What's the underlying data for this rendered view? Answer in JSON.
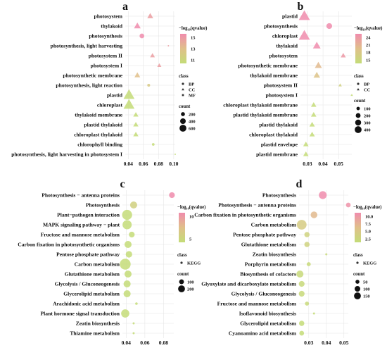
{
  "colors": {
    "high": "#f08cad",
    "mid": "#e0c08a",
    "low": "#c4dc78",
    "grid": "#e6e6e6"
  },
  "chart_data": [
    {
      "label": "a",
      "type": "scatter",
      "xlim": [
        0.036,
        0.102
      ],
      "xticks": [
        0.04,
        0.06,
        0.08,
        0.1
      ],
      "xtick_labels": [
        "0.04",
        "0.06",
        "0.08",
        "0.10"
      ],
      "categories": [
        "photosystem",
        "thylakoid",
        "photosynthesis",
        "photosynthesis, light harvesting",
        "photosystem II",
        "photosystem I",
        "photosynthetic membrane",
        "photosynthesis, light reaction",
        "plastid",
        "chloroplast",
        "thylakoid membrane",
        "plastid thylakoid",
        "chloroplast thylakoid",
        "chlorophyll binding",
        "photosynthesis, light harvesting in photosystem I"
      ],
      "x": [
        0.069,
        0.052,
        0.058,
        0.093,
        0.072,
        0.081,
        0.052,
        0.067,
        0.041,
        0.041,
        0.05,
        0.05,
        0.05,
        0.073,
        0.102
      ],
      "count": [
        180,
        230,
        160,
        10,
        120,
        90,
        170,
        60,
        620,
        620,
        140,
        140,
        140,
        50,
        5
      ],
      "neglog10q": [
        15,
        16,
        16,
        15,
        15,
        15,
        13,
        12,
        10,
        10,
        10,
        10,
        10,
        10,
        10
      ],
      "shape": [
        "triangle",
        "triangle",
        "circle",
        "circle",
        "triangle",
        "triangle",
        "triangle",
        "circle",
        "triangle",
        "triangle",
        "triangle",
        "triangle",
        "triangle",
        "circle",
        "circle"
      ],
      "color_legend": {
        "title": "−log₁₀(qvalue)",
        "ticks": [
          "15",
          "13",
          "11"
        ]
      },
      "class_legend": {
        "title": "class",
        "entries": [
          {
            "label": "BP",
            "shape": "circle"
          },
          {
            "label": "CC",
            "shape": "triangle"
          },
          {
            "label": "MF",
            "shape": "square"
          }
        ]
      },
      "size_legend": {
        "title": "count",
        "values": [
          200,
          400,
          600
        ]
      }
    },
    {
      "label": "b",
      "type": "scatter",
      "xlim": [
        0.0255,
        0.0585
      ],
      "xticks": [
        0.03,
        0.04,
        0.05
      ],
      "xtick_labels": [
        "0.03",
        "0.04",
        "0.05"
      ],
      "categories": [
        "plastid",
        "photosynthesis",
        "chloroplast",
        "thylakoid",
        "photosystem",
        "photosynthetic membrane",
        "thylakoid membrane",
        "photosystem II",
        "photosystem I",
        "chloroplast thylakoid membrane",
        "plastid thylakoid membrane",
        "plastid thylakoid",
        "chloroplast thylakoid",
        "plastid envelope",
        "plastid membrane"
      ],
      "x": [
        0.028,
        0.044,
        0.028,
        0.036,
        0.053,
        0.037,
        0.036,
        0.051,
        0.0585,
        0.034,
        0.034,
        0.033,
        0.033,
        0.029,
        0.029
      ],
      "count": [
        420,
        160,
        420,
        200,
        90,
        170,
        150,
        40,
        20,
        100,
        100,
        100,
        100,
        100,
        100
      ],
      "neglog10q": [
        24,
        24,
        24,
        24,
        23,
        20,
        19,
        17,
        15,
        15,
        15,
        15,
        15,
        15,
        15
      ],
      "shape": [
        "triangle",
        "circle",
        "triangle",
        "triangle",
        "triangle",
        "triangle",
        "triangle",
        "triangle",
        "triangle",
        "triangle",
        "triangle",
        "triangle",
        "triangle",
        "triangle",
        "triangle"
      ],
      "color_legend": {
        "title": "−log₁₀(qvalue)",
        "ticks": [
          "24",
          "21",
          "18",
          "15"
        ]
      },
      "class_legend": {
        "title": "class",
        "entries": [
          {
            "label": "BP",
            "shape": "circle"
          },
          {
            "label": "CC",
            "shape": "triangle"
          }
        ]
      },
      "size_legend": {
        "title": "count",
        "values": [
          100,
          200,
          300,
          400
        ]
      }
    },
    {
      "label": "c",
      "type": "scatter",
      "xlim": [
        0.036,
        0.091
      ],
      "xticks": [
        0.04,
        0.06,
        0.08
      ],
      "xtick_labels": [
        "0.04",
        "0.06",
        "0.08"
      ],
      "categories": [
        "Photosynthesis − antenna proteins",
        "Photosynthesis",
        "Plant−pathogen interaction",
        "MAPK signaling pathway − plant",
        "Fructose and mannose metabolism",
        "Carbon fixation in photosynthetic organisms",
        "Pentose phosphate pathway",
        "Carbon metabolism",
        "Glutathione metabolism",
        "Glycolysis / Gluconeogenesis",
        "Glycerolipid metabolism",
        "Arachidonic acid metabolism",
        "Plant hormone signal transduction",
        "Zeatin biosynthesis",
        "Thiamine metabolism"
      ],
      "x": [
        0.089,
        0.048,
        0.041,
        0.041,
        0.046,
        0.042,
        0.043,
        0.039,
        0.042,
        0.041,
        0.041,
        0.051,
        0.039,
        0.048,
        0.048
      ],
      "count": [
        80,
        120,
        240,
        200,
        80,
        120,
        100,
        280,
        120,
        120,
        120,
        15,
        160,
        10,
        10
      ],
      "neglog10q": [
        12,
        5,
        3,
        3,
        3,
        3,
        3,
        3,
        3,
        3,
        3,
        3,
        3,
        3,
        3
      ],
      "shape": [
        "circle",
        "circle",
        "circle",
        "circle",
        "circle",
        "circle",
        "circle",
        "circle",
        "circle",
        "circle",
        "circle",
        "circle",
        "circle",
        "circle",
        "circle"
      ],
      "color_legend": {
        "title": "−log₁₀(qvalue)",
        "ticks": [
          "10",
          "5"
        ]
      },
      "class_legend": {
        "title": "class",
        "entries": [
          {
            "label": "KEGG",
            "shape": "circle"
          }
        ]
      },
      "size_legend": {
        "title": "count",
        "values": [
          100,
          200
        ]
      }
    },
    {
      "label": "d",
      "type": "scatter",
      "xlim": [
        0.0245,
        0.0525
      ],
      "xticks": [
        0.03,
        0.04,
        0.05
      ],
      "xtick_labels": [
        "0.03",
        "0.04",
        "0.05"
      ],
      "categories": [
        "Photosynthesis",
        "Photosynthesis − antenna proteins",
        "Carbon fixation in photosynthetic organisms",
        "Carbon metabolism",
        "Pentose phosphate pathway",
        "Glutathione metabolism",
        "Zeatin biosynthesis",
        "Porphyrin metabolism",
        "Biosynthesis of cofactors",
        "Glyoxylate and dicarboxylate metabolism",
        "Glycolysis / Gluconeogenesis",
        "Fructose and mannose metabolism",
        "Isoflavonoid biosynthesis",
        "Glycerolipid metabolism",
        "Cyanoamino acid metabolism"
      ],
      "x": [
        0.038,
        0.0525,
        0.033,
        0.026,
        0.029,
        0.029,
        0.04,
        0.03,
        0.025,
        0.026,
        0.026,
        0.029,
        0.033,
        0.026,
        0.026
      ],
      "count": [
        110,
        40,
        80,
        170,
        50,
        50,
        8,
        30,
        90,
        60,
        60,
        30,
        8,
        50,
        40
      ],
      "neglog10q": [
        11.5,
        11,
        8,
        6,
        5,
        5,
        4,
        4,
        4,
        4,
        4,
        4,
        3.5,
        3.5,
        3.5
      ],
      "shape": [
        "circle",
        "circle",
        "circle",
        "circle",
        "circle",
        "circle",
        "circle",
        "circle",
        "circle",
        "circle",
        "circle",
        "circle",
        "circle",
        "circle",
        "circle"
      ],
      "color_legend": {
        "title": "−log₁₀(qvalue)",
        "ticks": [
          "10.0",
          "7.5",
          "5.0",
          "2.5"
        ]
      },
      "class_legend": {
        "title": "class",
        "entries": [
          {
            "label": "KEGG",
            "shape": "circle"
          }
        ]
      },
      "size_legend": {
        "title": "count",
        "values": [
          50,
          100,
          150
        ]
      }
    }
  ]
}
